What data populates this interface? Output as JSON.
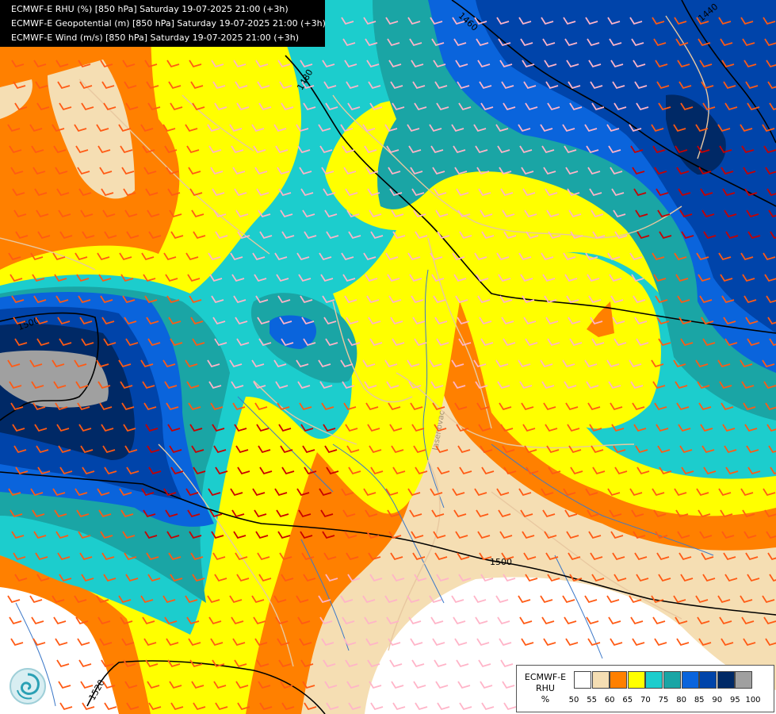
{
  "header": {
    "lines": [
      "ECMWF-E RHU (%) [850 hPa] Saturday 19-07-2025 21:00 (+3h)",
      "ECMWF-E Geopotential (m) [850 hPa] Saturday 19-07-2025 21:00 (+3h)",
      "ECMWF-E Wind (m/s) [850 hPa] Saturday 19-07-2025 21:00 (+3h)"
    ]
  },
  "legend": {
    "title_line1": "ECMWF-E",
    "title_line2": "RHU",
    "title_line3": "%",
    "levels": [
      "50",
      "55",
      "60",
      "65",
      "70",
      "75",
      "80",
      "85",
      "90",
      "95",
      "100"
    ],
    "colors": [
      "#ffffff",
      "#f5deb3",
      "#ff8000",
      "#ffff00",
      "#1ccdcd",
      "#1aa5a5",
      "#0a64dc",
      "#0044aa",
      "#002966",
      "#a0a0a0",
      "#606060"
    ]
  },
  "contours": {
    "labels": [
      "1440",
      "1460",
      "1480",
      "1500",
      "1500",
      "1520"
    ]
  },
  "map_text": {
    "city": "Jasenovac"
  },
  "colors": {
    "white": "#ffffff",
    "tan": "#f5deb3",
    "orange": "#ff8000",
    "yellow": "#ffff00",
    "cyan": "#1ccdcd",
    "teal": "#1aa5a5",
    "blue": "#0a64dc",
    "darkblue": "#0044aa",
    "navy": "#002966",
    "gray": "#a0a0a0",
    "border": "#e8c8a0",
    "river": "#3c78c8",
    "barb_orange": "#ff5a14",
    "barb_pink": "#ffb4c8",
    "barb_red": "#c80000"
  }
}
